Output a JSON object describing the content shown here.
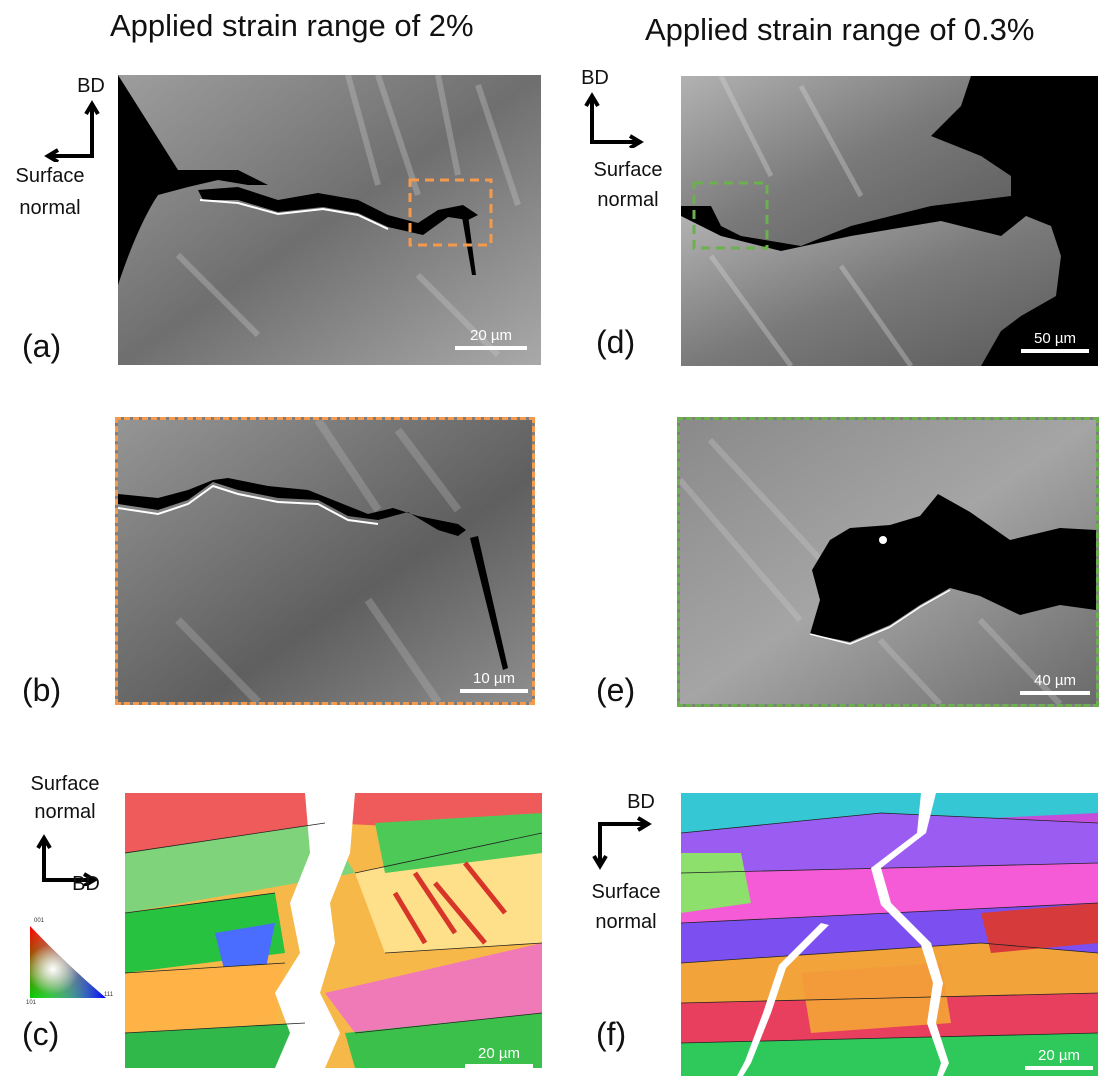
{
  "titles": {
    "left": "Applied strain range of 2%",
    "right": "Applied strain range of 0.3%"
  },
  "labels": {
    "a": "(a)",
    "b": "(b)",
    "c": "(c)",
    "d": "(d)",
    "e": "(e)",
    "f": "(f)"
  },
  "axes": {
    "bd": "BD",
    "surface": "Surface",
    "normal": "normal"
  },
  "scalebars": {
    "a": "20 µm",
    "b": "10 µm",
    "c": "20 µm",
    "d": "50 µm",
    "e": "40 µm",
    "f": "20 µm"
  },
  "ipf_key": {
    "v001": "001",
    "v101": "101",
    "v111": "111"
  },
  "colors": {
    "orange_box": "#f39a4c",
    "green_box": "#6cb04f"
  }
}
